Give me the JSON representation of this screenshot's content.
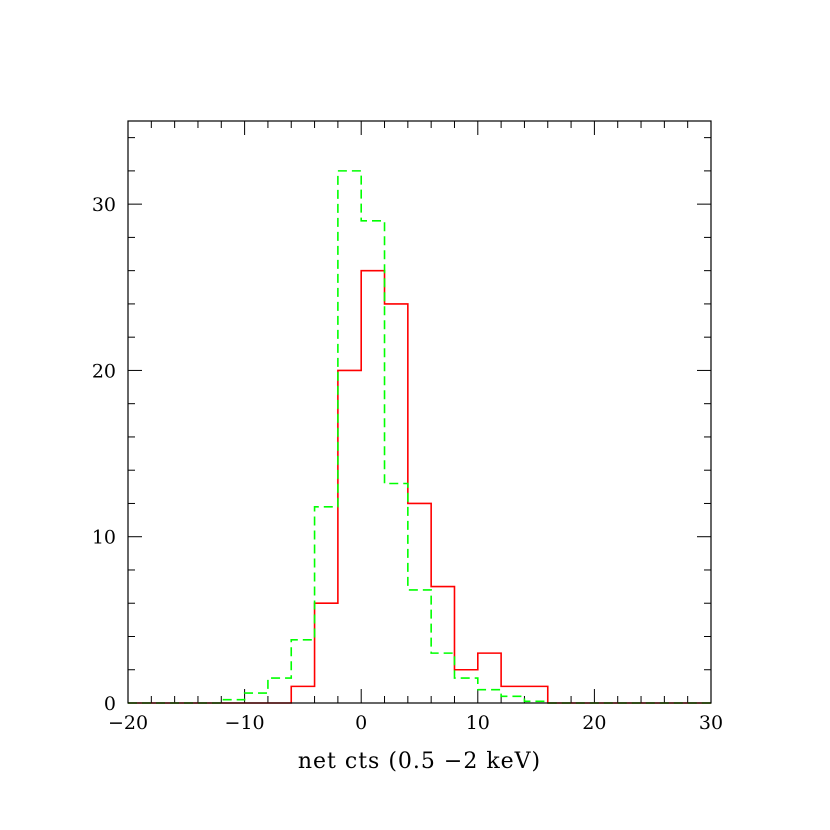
{
  "chart_data": {
    "type": "histogram",
    "title": "",
    "xlabel": "net cts (0.5 −2 keV)",
    "ylabel": "",
    "xlim": [
      -20,
      30
    ],
    "ylim": [
      0,
      35
    ],
    "x_ticks": [
      -20,
      -10,
      0,
      10,
      20,
      30
    ],
    "x_tick_labels": [
      "−20",
      "−10",
      "0",
      "10",
      "20",
      "30"
    ],
    "y_ticks": [
      0,
      10,
      20,
      30
    ],
    "y_tick_labels": [
      "0",
      "10",
      "20",
      "30"
    ],
    "bin_edges": [
      -20,
      -18,
      -16,
      -14,
      -12,
      -10,
      -8,
      -6,
      -4,
      -2,
      0,
      2,
      4,
      6,
      8,
      10,
      12,
      14,
      16,
      18,
      20,
      22,
      24,
      26,
      28,
      30
    ],
    "series": [
      {
        "style": "solid",
        "color": "#ff0000",
        "values": [
          0,
          0,
          0,
          0,
          0,
          0,
          0,
          1,
          6,
          20,
          26,
          24,
          12,
          7,
          2,
          3,
          1,
          1,
          0,
          0,
          0,
          0,
          0,
          0,
          0
        ]
      },
      {
        "style": "dashed",
        "color": "#00ff00",
        "values": [
          0,
          0,
          0,
          0,
          0.2,
          0.6,
          1.5,
          3.8,
          11.8,
          32,
          29,
          13.2,
          6.8,
          3,
          1.5,
          0.8,
          0.4,
          0.1,
          0,
          0,
          0,
          0,
          0,
          0,
          0
        ]
      }
    ],
    "grid": false,
    "legend": "none"
  }
}
